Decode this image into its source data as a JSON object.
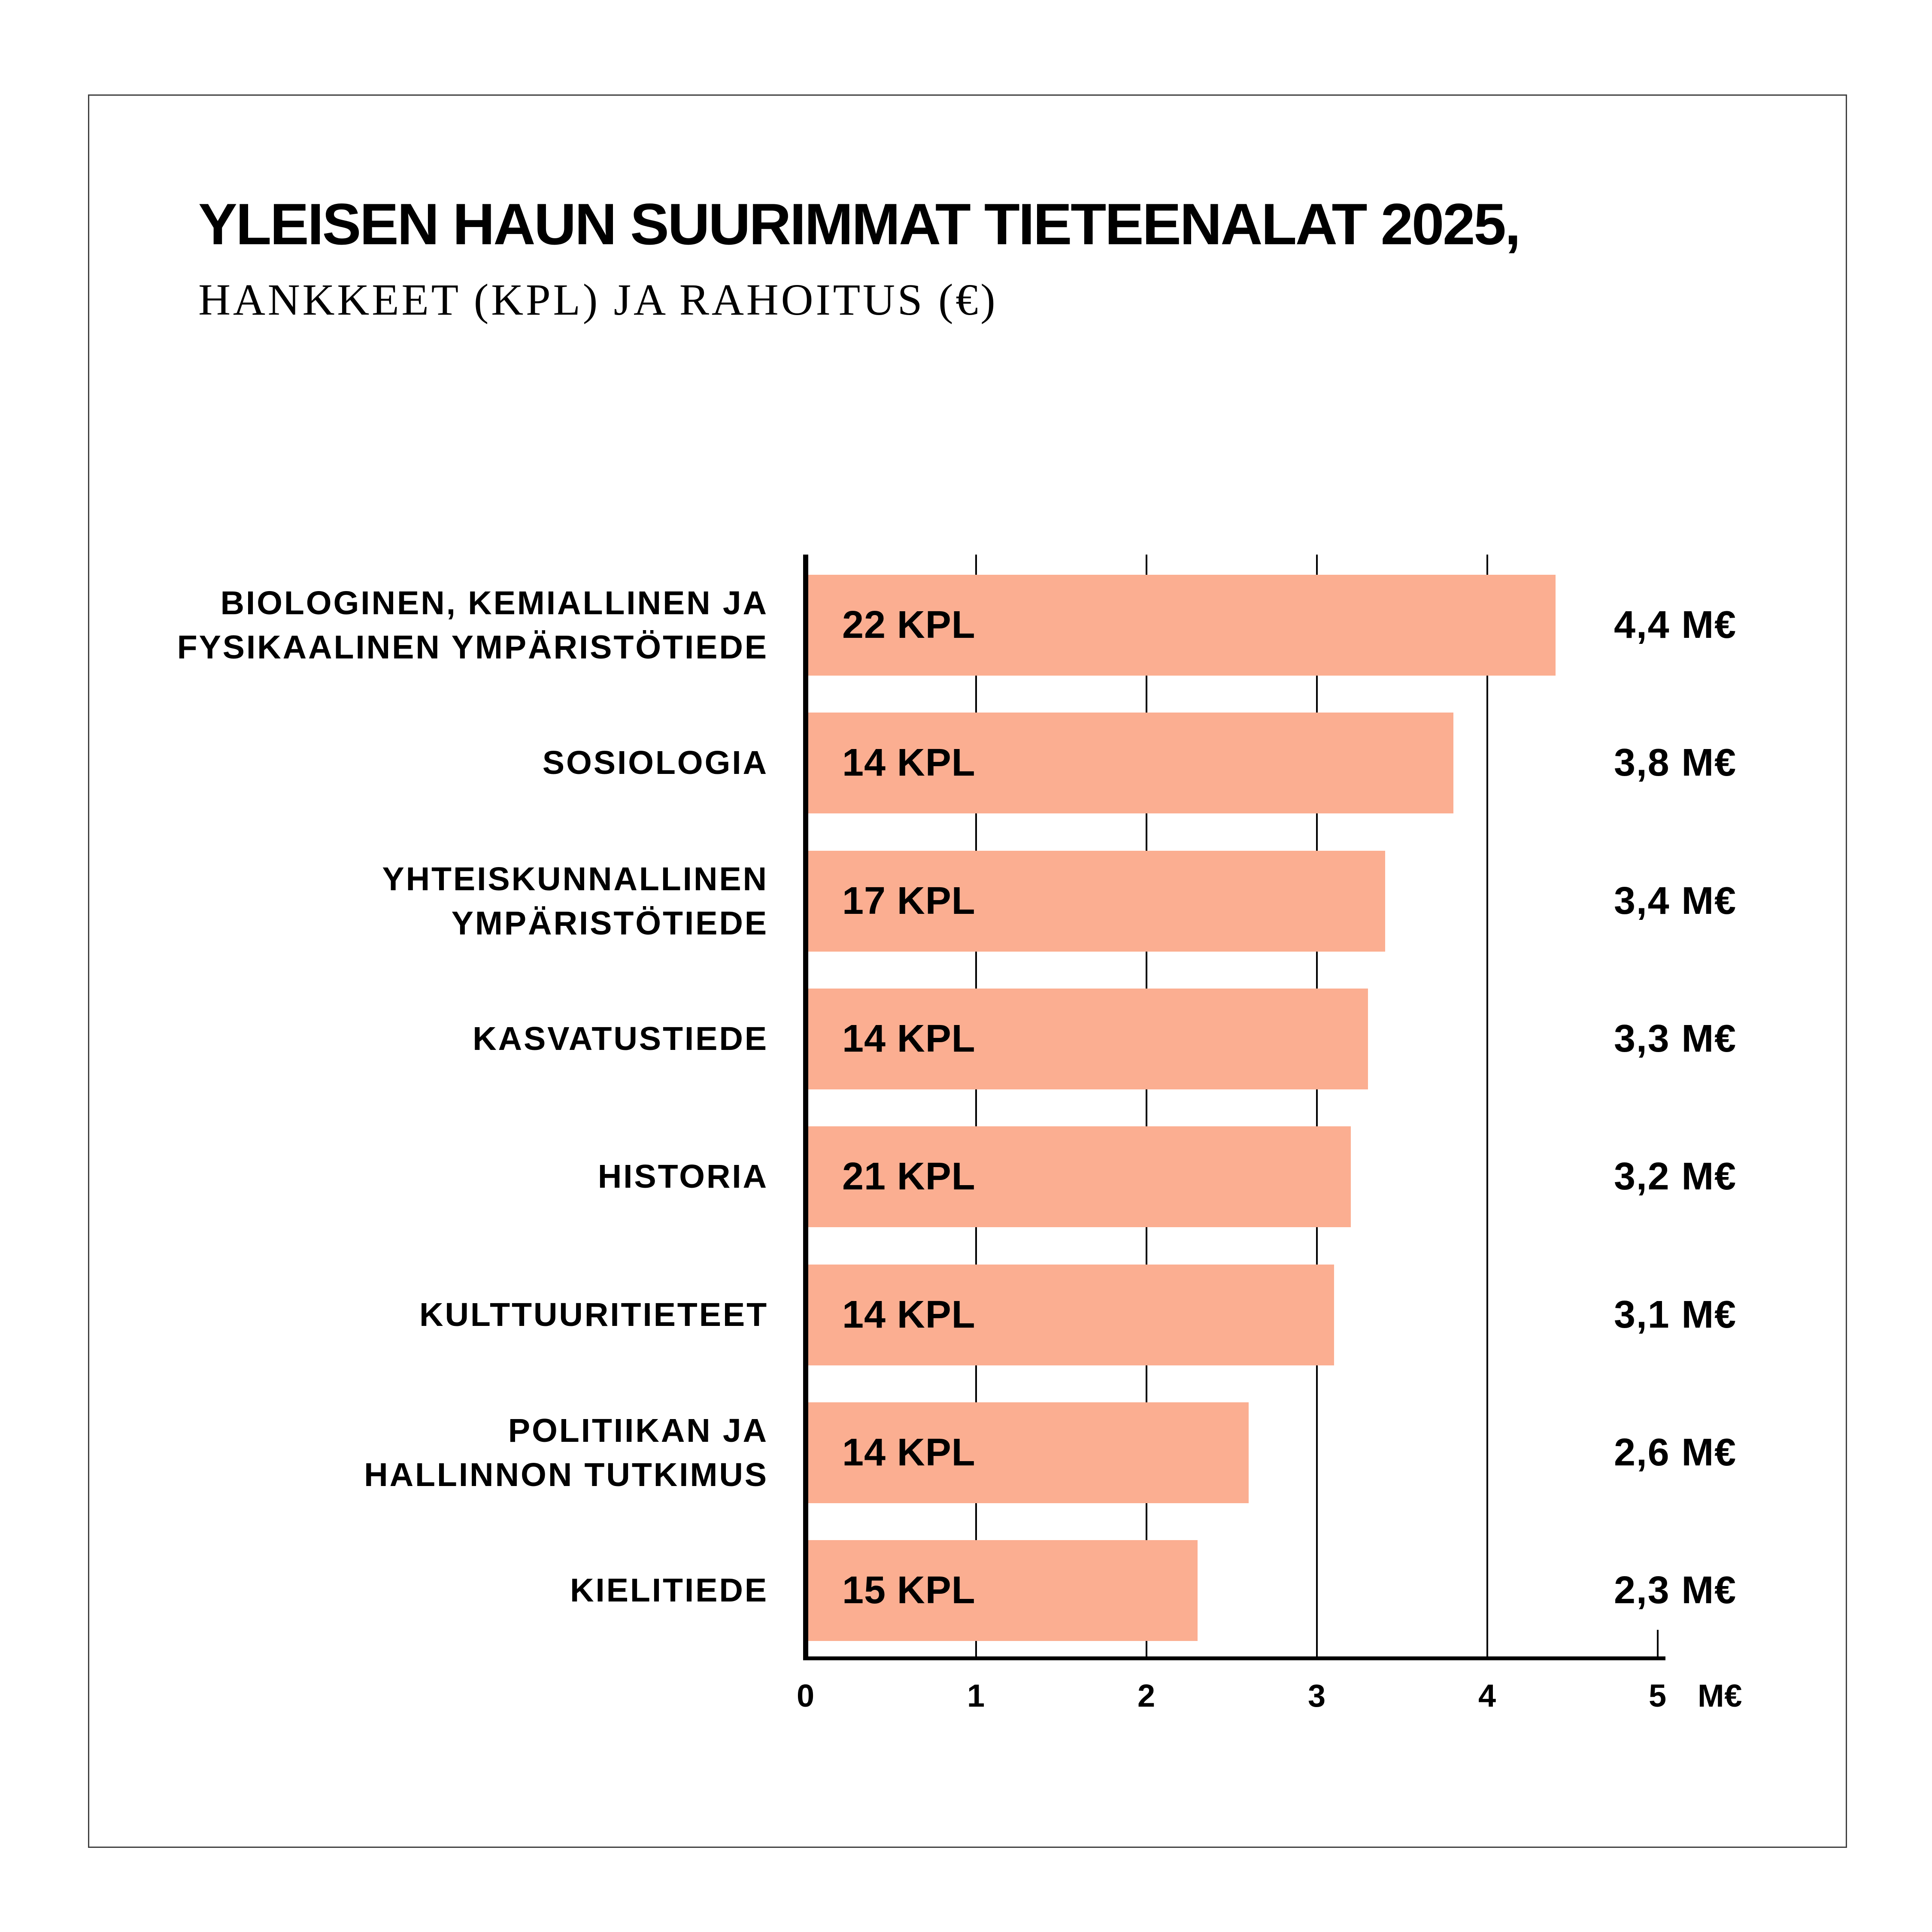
{
  "canvas": {
    "background": "#FFFFFF",
    "frame_border_color": "#3F3F3F"
  },
  "title": {
    "line1": "YLEISEN HAUN SUURIMMAT TIETEENALAT 2025,",
    "line2": "HANKKEET (KPL) JA RAHOITUS (€)"
  },
  "chart_data": {
    "type": "bar",
    "orientation": "horizontal",
    "title": "Yleisen haun suurimmat tieteenalat 2025, hankkeet (kpl) ja rahoitus (€)",
    "categories": [
      "BIOLOGINEN, KEMIALLINEN JA FYSIKAALINEN YMPÄRISTÖTIEDE",
      "SOSIOLOGIA",
      "YHTEISKUNNALLINEN YMPÄRISTÖTIEDE",
      "KASVATUSTIEDE",
      "HISTORIA",
      "KULTTUURITIETEET",
      "POLITIIKAN JA HALLINNON TUTKIMUS",
      "KIELITIEDE"
    ],
    "category_lines": [
      [
        "BIOLOGINEN, KEMIALLINEN JA",
        "FYSIKAALINEN YMPÄRISTÖTIEDE"
      ],
      [
        "SOSIOLOGIA"
      ],
      [
        "YHTEISKUNNALLINEN",
        "YMPÄRISTÖTIEDE"
      ],
      [
        "KASVATUSTIEDE"
      ],
      [
        "HISTORIA"
      ],
      [
        "KULTTUURITIETEET"
      ],
      [
        "POLITIIKAN JA",
        "HALLINNON TUTKIMUS"
      ],
      [
        "KIELITIEDE"
      ]
    ],
    "series": [
      {
        "name": "Hankkeet (kpl)",
        "values": [
          22,
          14,
          17,
          14,
          21,
          14,
          14,
          15
        ]
      },
      {
        "name": "Rahoitus (M€)",
        "values": [
          4.4,
          3.8,
          3.4,
          3.3,
          3.2,
          3.1,
          2.6,
          2.3
        ]
      }
    ],
    "bar_value_labels": [
      "22 KPL",
      "14 KPL",
      "17 KPL",
      "14 KPL",
      "21 KPL",
      "14 KPL",
      "14 KPL",
      "15 KPL"
    ],
    "funding_labels": [
      "4,4 M€",
      "3,8 M€",
      "3,4 M€",
      "3,3 M€",
      "3,2 M€",
      "3,1 M€",
      "2,6 M€",
      "2,3 M€"
    ],
    "x_ticks": [
      "0",
      "1",
      "2",
      "3",
      "4",
      "5"
    ],
    "x_axis_unit_suffix": "M€",
    "xlim": [
      0,
      5
    ],
    "grid": "vertical gridlines at 1,2,3,4; short end tick at 5",
    "legend": "none",
    "bar_color": "#FBAE91",
    "text_color": "#000000"
  }
}
